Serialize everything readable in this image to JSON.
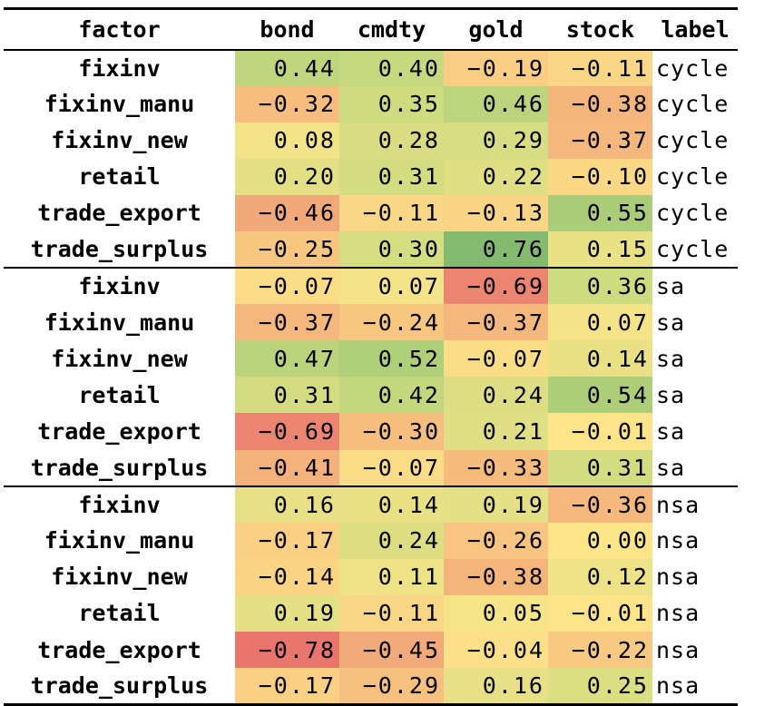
{
  "headers": [
    "factor",
    "bond",
    "cmdty",
    "gold",
    "stock",
    "label"
  ],
  "rows": [
    {
      "factor": "fixinv",
      "bond": "0.44",
      "cmdty": "0.40",
      "gold": "−0.19",
      "stock": "−0.11",
      "label": "cycle"
    },
    {
      "factor": "fixinv_manu",
      "bond": "−0.32",
      "cmdty": "0.35",
      "gold": "0.46",
      "stock": "−0.38",
      "label": "cycle"
    },
    {
      "factor": "fixinv_new",
      "bond": "0.08",
      "cmdty": "0.28",
      "gold": "0.29",
      "stock": "−0.37",
      "label": "cycle"
    },
    {
      "factor": "retail",
      "bond": "0.20",
      "cmdty": "0.31",
      "gold": "0.22",
      "stock": "−0.10",
      "label": "cycle"
    },
    {
      "factor": "trade_export",
      "bond": "−0.46",
      "cmdty": "−0.11",
      "gold": "−0.13",
      "stock": "0.55",
      "label": "cycle"
    },
    {
      "factor": "trade_surplus",
      "bond": "−0.25",
      "cmdty": "0.30",
      "gold": "0.76",
      "stock": "0.15",
      "label": "cycle"
    },
    {
      "factor": "fixinv",
      "bond": "−0.07",
      "cmdty": "0.07",
      "gold": "−0.69",
      "stock": "0.36",
      "label": "sa"
    },
    {
      "factor": "fixinv_manu",
      "bond": "−0.37",
      "cmdty": "−0.24",
      "gold": "−0.37",
      "stock": "0.07",
      "label": "sa"
    },
    {
      "factor": "fixinv_new",
      "bond": "0.47",
      "cmdty": "0.52",
      "gold": "−0.07",
      "stock": "0.14",
      "label": "sa"
    },
    {
      "factor": "retail",
      "bond": "0.31",
      "cmdty": "0.42",
      "gold": "0.24",
      "stock": "0.54",
      "label": "sa"
    },
    {
      "factor": "trade_export",
      "bond": "−0.69",
      "cmdty": "−0.30",
      "gold": "0.21",
      "stock": "−0.01",
      "label": "sa"
    },
    {
      "factor": "trade_surplus",
      "bond": "−0.41",
      "cmdty": "−0.07",
      "gold": "−0.33",
      "stock": "0.31",
      "label": "sa"
    },
    {
      "factor": "fixinv",
      "bond": "0.16",
      "cmdty": "0.14",
      "gold": "0.19",
      "stock": "−0.36",
      "label": "nsa"
    },
    {
      "factor": "fixinv_manu",
      "bond": "−0.17",
      "cmdty": "0.24",
      "gold": "−0.26",
      "stock": "0.00",
      "label": "nsa"
    },
    {
      "factor": "fixinv_new",
      "bond": "−0.14",
      "cmdty": "0.11",
      "gold": "−0.38",
      "stock": "0.12",
      "label": "nsa"
    },
    {
      "factor": "retail",
      "bond": "0.19",
      "cmdty": "−0.11",
      "gold": "0.05",
      "stock": "−0.01",
      "label": "nsa"
    },
    {
      "factor": "trade_export",
      "bond": "−0.78",
      "cmdty": "−0.45",
      "gold": "−0.04",
      "stock": "−0.22",
      "label": "nsa"
    },
    {
      "factor": "trade_surplus",
      "bond": "−0.17",
      "cmdty": "−0.29",
      "gold": "0.16",
      "stock": "0.25",
      "label": "nsa"
    }
  ],
  "colors": {
    "scale": [
      "#e8766c",
      "#f4b47c",
      "#fde58a",
      "#c9da80",
      "#7fb86f"
    ],
    "scale_domain": [
      -0.78,
      0.78
    ]
  }
}
